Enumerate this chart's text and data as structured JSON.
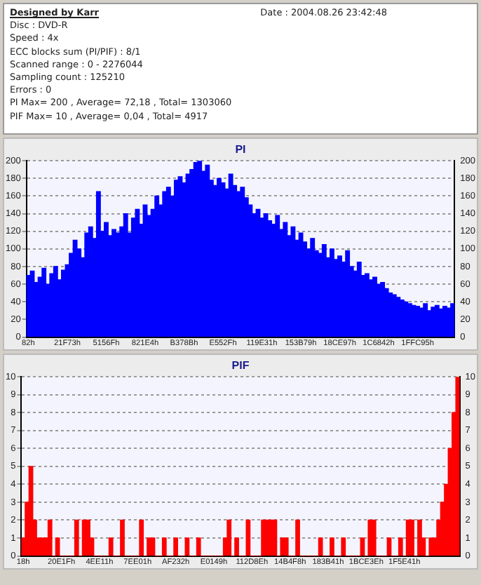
{
  "chart_data": [
    {
      "type": "other",
      "title": "Designed by Karr",
      "annotations": [
        "Date : 2004.08.26 23:42:48",
        "Disc : DVD-R",
        "Speed : 4x",
        "ECC blocks sum (PI/PIF) : 8/1",
        "Scanned range : 0 - 2276044",
        "Sampling count : 125210",
        "Errors : 0",
        "PI Max= 200 , Average= 72,18 , Total= 1303060",
        "PIF Max= 10 , Average= 0,04 , Total= 4917"
      ]
    },
    {
      "type": "bar",
      "title": "PI",
      "categories": [
        "82h",
        null,
        null,
        null,
        null,
        null,
        null,
        null,
        null,
        null,
        "21F73h",
        null,
        null,
        null,
        null,
        null,
        null,
        null,
        null,
        null,
        "5156Fh",
        null,
        null,
        null,
        null,
        null,
        null,
        null,
        null,
        null,
        "821E4h",
        null,
        null,
        null,
        null,
        null,
        null,
        null,
        null,
        null,
        "B378Bh",
        null,
        null,
        null,
        null,
        null,
        null,
        null,
        null,
        null,
        "E552Fh",
        null,
        null,
        null,
        null,
        null,
        null,
        null,
        null,
        null,
        "119E31h",
        null,
        null,
        null,
        null,
        null,
        null,
        null,
        null,
        null,
        "153B79h",
        null,
        null,
        null,
        null,
        null,
        null,
        null,
        null,
        null,
        "18CE97h",
        null,
        null,
        null,
        null,
        null,
        null,
        null,
        null,
        null,
        "1C6842h",
        null,
        null,
        null,
        null,
        null,
        null,
        null,
        null,
        null,
        "1FFC95h",
        null,
        null,
        null,
        null,
        null,
        null,
        null,
        null,
        null
      ],
      "color": "#0000ff",
      "values": [
        70,
        75,
        62,
        68,
        78,
        60,
        72,
        80,
        65,
        76,
        82,
        95,
        110,
        100,
        90,
        118,
        125,
        112,
        165,
        120,
        130,
        115,
        122,
        118,
        125,
        140,
        118,
        135,
        145,
        128,
        150,
        138,
        145,
        160,
        150,
        165,
        170,
        160,
        178,
        182,
        175,
        185,
        190,
        198,
        200,
        188,
        195,
        178,
        172,
        180,
        175,
        168,
        185,
        172,
        165,
        170,
        158,
        150,
        140,
        145,
        135,
        140,
        132,
        128,
        138,
        122,
        130,
        115,
        125,
        110,
        118,
        108,
        100,
        112,
        98,
        95,
        105,
        90,
        100,
        88,
        92,
        85,
        98,
        80,
        75,
        85,
        70,
        72,
        65,
        68,
        60,
        62,
        55,
        50,
        48,
        45,
        42,
        40,
        38,
        36,
        35,
        33,
        38,
        30,
        34,
        36,
        32,
        35,
        33,
        38
      ],
      "ylim": [
        0,
        200
      ],
      "yticks": [
        0,
        20,
        40,
        60,
        80,
        100,
        120,
        140,
        160,
        180,
        200
      ],
      "y2lim": [
        0,
        200
      ],
      "y2ticks": [
        0,
        20,
        40,
        60,
        80,
        100,
        120,
        140,
        160,
        180,
        200
      ],
      "grid": "y",
      "legend": false
    },
    {
      "type": "bar",
      "title": "PIF",
      "categories": [
        "18h",
        null,
        null,
        null,
        null,
        null,
        null,
        null,
        null,
        null,
        "20E1Fh",
        null,
        null,
        null,
        null,
        null,
        null,
        null,
        null,
        null,
        "4EE11h",
        null,
        null,
        null,
        null,
        null,
        null,
        null,
        null,
        null,
        "7EE01h",
        null,
        null,
        null,
        null,
        null,
        null,
        null,
        null,
        null,
        "AF232h",
        null,
        null,
        null,
        null,
        null,
        null,
        null,
        null,
        null,
        "E0149h",
        null,
        null,
        null,
        null,
        null,
        null,
        null,
        null,
        null,
        "112D8Eh",
        null,
        null,
        null,
        null,
        null,
        null,
        null,
        null,
        null,
        "14B4F8h",
        null,
        null,
        null,
        null,
        null,
        null,
        null,
        null,
        null,
        "183B41h",
        null,
        null,
        null,
        null,
        null,
        null,
        null,
        null,
        null,
        "1BCE3Eh",
        null,
        null,
        null,
        null,
        null,
        null,
        null,
        null,
        null,
        "1F5E41h",
        null,
        null,
        null,
        null,
        null,
        null,
        null,
        null,
        null,
        null,
        null,
        null,
        null,
        null
      ],
      "color": "#ff0000",
      "values": [
        1,
        3,
        5,
        2,
        1,
        1,
        1,
        2,
        0,
        1,
        0,
        0,
        0,
        0,
        2,
        0,
        2,
        2,
        1,
        0,
        0,
        0,
        0,
        1,
        0,
        0,
        2,
        0,
        0,
        0,
        0,
        2,
        0,
        1,
        1,
        0,
        0,
        1,
        0,
        0,
        1,
        0,
        0,
        1,
        0,
        0,
        1,
        0,
        0,
        0,
        0,
        0,
        0,
        1,
        2,
        0,
        1,
        0,
        0,
        2,
        0,
        0,
        0,
        2,
        2,
        2,
        2,
        0,
        1,
        1,
        0,
        0,
        2,
        0,
        0,
        0,
        0,
        0,
        1,
        0,
        0,
        1,
        0,
        0,
        1,
        0,
        0,
        0,
        0,
        1,
        0,
        2,
        2,
        0,
        0,
        0,
        1,
        0,
        0,
        1,
        0,
        2,
        2,
        0,
        2,
        1,
        0,
        1,
        1,
        2,
        3,
        4,
        6,
        8,
        10
      ],
      "ylim": [
        0,
        10
      ],
      "yticks": [
        0,
        1,
        2,
        3,
        4,
        5,
        6,
        7,
        8,
        9,
        10
      ],
      "y2lim": [
        0,
        10
      ],
      "y2ticks": [
        0,
        1,
        2,
        3,
        4,
        5,
        6,
        7,
        8,
        9,
        10
      ],
      "grid": "y",
      "legend": false
    }
  ]
}
